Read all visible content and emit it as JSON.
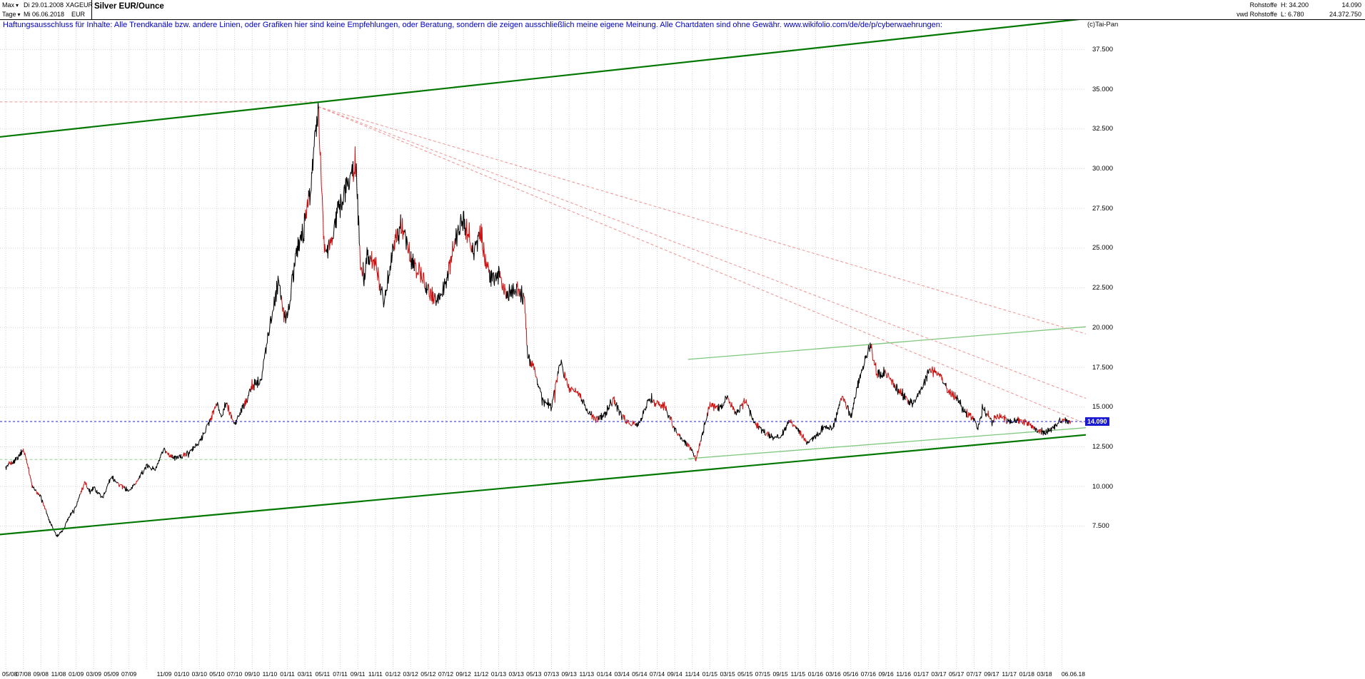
{
  "header": {
    "range_label": "Max",
    "period_label": "Tage",
    "start_date": "Di 29.01.2008",
    "end_date": "Mi 06.06.2018",
    "symbol": "XAGEUR",
    "currency": "EUR",
    "title": "Silver EUR/Ounce",
    "category": "Rohstoffe",
    "feed": "vwd Rohstoffe",
    "high": "H: 34.200",
    "low": "L: 6.780",
    "last_price": "14.090",
    "volume": "24.372.750",
    "copyright": "(c)Tai-Pan"
  },
  "icons": {
    "dropdown_arrow": "▾"
  },
  "disclaimer": "Haftungsausschluss für Inhalte: Alle Trendkanäle bzw. andere Linien, oder Grafiken hier sind keine Empfehlungen, oder Beratung, sondern die zeigen ausschließlich meine eigene Meinung. Alle Chartdaten sind ohne Gewähr.  www.wikifolio.com/de/de/p/cyberwaehrungen:",
  "chart_data": {
    "type": "candlestick",
    "title": "Silver EUR/Ounce",
    "instrument": "XAGEUR",
    "currency": "EUR",
    "start_date": "29.01.2008",
    "end_date": "06.06.2018",
    "last_price": 14.09,
    "high": 34.2,
    "low": 6.78,
    "grid": true,
    "legend": "none",
    "y_axis": {
      "position": "right",
      "ticks": [
        37.5,
        35,
        32.5,
        30,
        27.5,
        25,
        22.5,
        20,
        17.5,
        15,
        12.5,
        10,
        7.5
      ],
      "tick_labels": [
        "37.500",
        "35.000",
        "32.500",
        "30.000",
        "27.500",
        "25.000",
        "22.500",
        "20.000",
        "17.500",
        "15.000",
        "12.500",
        "10.000",
        "7.500"
      ]
    },
    "x_axis": {
      "unit": "months_from_2008-05",
      "ticks": [
        {
          "m": 0,
          "label": "05/08"
        },
        {
          "m": 2,
          "label": "07/08"
        },
        {
          "m": 4,
          "label": "09/08"
        },
        {
          "m": 6,
          "label": "11/08"
        },
        {
          "m": 8,
          "label": "01/09"
        },
        {
          "m": 10,
          "label": "03/09"
        },
        {
          "m": 12,
          "label": "05/09"
        },
        {
          "m": 14,
          "label": "07/09"
        },
        {
          "m": 18,
          "label": "11/09"
        },
        {
          "m": 20,
          "label": "01/10"
        },
        {
          "m": 22,
          "label": "03/10"
        },
        {
          "m": 24,
          "label": "05/10"
        },
        {
          "m": 26,
          "label": "07/10"
        },
        {
          "m": 28,
          "label": "09/10"
        },
        {
          "m": 30,
          "label": "11/10"
        },
        {
          "m": 32,
          "label": "01/11"
        },
        {
          "m": 34,
          "label": "03/11"
        },
        {
          "m": 36,
          "label": "05/11"
        },
        {
          "m": 38,
          "label": "07/11"
        },
        {
          "m": 40,
          "label": "09/11"
        },
        {
          "m": 42,
          "label": "11/11"
        },
        {
          "m": 44,
          "label": "01/12"
        },
        {
          "m": 46,
          "label": "03/12"
        },
        {
          "m": 48,
          "label": "05/12"
        },
        {
          "m": 50,
          "label": "07/12"
        },
        {
          "m": 52,
          "label": "09/12"
        },
        {
          "m": 54,
          "label": "11/12"
        },
        {
          "m": 56,
          "label": "01/13"
        },
        {
          "m": 58,
          "label": "03/13"
        },
        {
          "m": 60,
          "label": "05/13"
        },
        {
          "m": 62,
          "label": "07/13"
        },
        {
          "m": 64,
          "label": "09/13"
        },
        {
          "m": 66,
          "label": "11/13"
        },
        {
          "m": 68,
          "label": "01/14"
        },
        {
          "m": 70,
          "label": "03/14"
        },
        {
          "m": 72,
          "label": "05/14"
        },
        {
          "m": 74,
          "label": "07/14"
        },
        {
          "m": 76,
          "label": "09/14"
        },
        {
          "m": 78,
          "label": "11/14"
        },
        {
          "m": 80,
          "label": "01/15"
        },
        {
          "m": 82,
          "label": "03/15"
        },
        {
          "m": 84,
          "label": "05/15"
        },
        {
          "m": 86,
          "label": "07/15"
        },
        {
          "m": 88,
          "label": "09/15"
        },
        {
          "m": 90,
          "label": "11/15"
        },
        {
          "m": 92,
          "label": "01/16"
        },
        {
          "m": 94,
          "label": "03/16"
        },
        {
          "m": 96,
          "label": "05/16"
        },
        {
          "m": 98,
          "label": "07/16"
        },
        {
          "m": 100,
          "label": "09/16"
        },
        {
          "m": 102,
          "label": "11/16"
        },
        {
          "m": 104,
          "label": "01/17"
        },
        {
          "m": 106,
          "label": "03/17"
        },
        {
          "m": 108,
          "label": "05/17"
        },
        {
          "m": 110,
          "label": "07/17"
        },
        {
          "m": 112,
          "label": "09/17"
        },
        {
          "m": 114,
          "label": "11/17"
        },
        {
          "m": 116,
          "label": "01/18"
        },
        {
          "m": 118,
          "label": "03/18"
        },
        {
          "m": 121,
          "label": "06.06.18",
          "align": "right"
        }
      ]
    },
    "series_monthly": {
      "x_unit": "months_from_2008-05",
      "points": [
        [
          0,
          11.2
        ],
        [
          1,
          11.6
        ],
        [
          2,
          12.3
        ],
        [
          2.5,
          11.4
        ],
        [
          3,
          10.0
        ],
        [
          4,
          9.3
        ],
        [
          5,
          7.8
        ],
        [
          5.8,
          6.9
        ],
        [
          6.5,
          7.2
        ],
        [
          7,
          7.9
        ],
        [
          8,
          8.8
        ],
        [
          9,
          10.3
        ],
        [
          9.5,
          9.6
        ],
        [
          10,
          9.9
        ],
        [
          11,
          9.3
        ],
        [
          12,
          10.6
        ],
        [
          13,
          10.1
        ],
        [
          14,
          9.7
        ],
        [
          15,
          10.4
        ],
        [
          16,
          11.3
        ],
        [
          17,
          11.1
        ],
        [
          18,
          12.3
        ],
        [
          19,
          11.8
        ],
        [
          20,
          11.9
        ],
        [
          21,
          12.2
        ],
        [
          22,
          12.8
        ],
        [
          23,
          13.9
        ],
        [
          24,
          15.2
        ],
        [
          24.5,
          14.4
        ],
        [
          25,
          15.3
        ],
        [
          26,
          13.9
        ],
        [
          27,
          15.0
        ],
        [
          28,
          16.3
        ],
        [
          29,
          16.8
        ],
        [
          30,
          20.2
        ],
        [
          31,
          23.0
        ],
        [
          31.5,
          21.0
        ],
        [
          32,
          20.6
        ],
        [
          33,
          24.8
        ],
        [
          34,
          26.5
        ],
        [
          34.7,
          29.3
        ],
        [
          35.5,
          33.9
        ],
        [
          35.9,
          29.0
        ],
        [
          36.2,
          24.5
        ],
        [
          37,
          25.5
        ],
        [
          38,
          27.8
        ],
        [
          39,
          29.2
        ],
        [
          39.8,
          30.4
        ],
        [
          40.3,
          23.8
        ],
        [
          40.8,
          23.2
        ],
        [
          41,
          24.8
        ],
        [
          42,
          23.9
        ],
        [
          43,
          21.6
        ],
        [
          44,
          25.2
        ],
        [
          45,
          26.4
        ],
        [
          46,
          24.3
        ],
        [
          47,
          23.6
        ],
        [
          48,
          22.4
        ],
        [
          49,
          21.6
        ],
        [
          50,
          22.8
        ],
        [
          51,
          25.2
        ],
        [
          52,
          27.0
        ],
        [
          53,
          24.8
        ],
        [
          54,
          25.8
        ],
        [
          55,
          23.0
        ],
        [
          56,
          23.3
        ],
        [
          57,
          22.0
        ],
        [
          58,
          22.4
        ],
        [
          58.9,
          21.9
        ],
        [
          59.3,
          18.2
        ],
        [
          60,
          17.4
        ],
        [
          61,
          15.4
        ],
        [
          62,
          15.0
        ],
        [
          63,
          17.9
        ],
        [
          64,
          16.2
        ],
        [
          65,
          16.0
        ],
        [
          66,
          14.8
        ],
        [
          67,
          14.2
        ],
        [
          68,
          14.5
        ],
        [
          69,
          15.5
        ],
        [
          70,
          14.4
        ],
        [
          71,
          13.9
        ],
        [
          72,
          14.0
        ],
        [
          73,
          15.5
        ],
        [
          74,
          15.3
        ],
        [
          75,
          14.9
        ],
        [
          76,
          13.6
        ],
        [
          77,
          12.9
        ],
        [
          78,
          12.2
        ],
        [
          78.4,
          11.7
        ],
        [
          79,
          13.0
        ],
        [
          80,
          15.2
        ],
        [
          81,
          14.9
        ],
        [
          82,
          15.6
        ],
        [
          83,
          14.6
        ],
        [
          84,
          15.4
        ],
        [
          85,
          14.1
        ],
        [
          86,
          13.5
        ],
        [
          87,
          13.1
        ],
        [
          88,
          13.1
        ],
        [
          89,
          14.2
        ],
        [
          90,
          13.5
        ],
        [
          91,
          12.8
        ],
        [
          92,
          13.2
        ],
        [
          93,
          13.8
        ],
        [
          94,
          13.7
        ],
        [
          95,
          15.7
        ],
        [
          96,
          14.4
        ],
        [
          97,
          16.9
        ],
        [
          98,
          18.5
        ],
        [
          98.3,
          18.8
        ],
        [
          99,
          17.0
        ],
        [
          100,
          17.2
        ],
        [
          101,
          16.3
        ],
        [
          102,
          15.7
        ],
        [
          103,
          15.2
        ],
        [
          104,
          16.1
        ],
        [
          105,
          17.4
        ],
        [
          106,
          17.1
        ],
        [
          107,
          16.0
        ],
        [
          108,
          15.6
        ],
        [
          109,
          14.7
        ],
        [
          110,
          14.3
        ],
        [
          110.4,
          13.6
        ],
        [
          111,
          14.9
        ],
        [
          112,
          14.2
        ],
        [
          113,
          14.5
        ],
        [
          114,
          14.0
        ],
        [
          115,
          14.2
        ],
        [
          116,
          14.0
        ],
        [
          117,
          13.6
        ],
        [
          118,
          13.4
        ],
        [
          119,
          13.7
        ],
        [
          120,
          14.2
        ],
        [
          121,
          14.09
        ]
      ]
    },
    "overlays": {
      "last_price_line": {
        "value": 14.09,
        "label": "14.090",
        "color": "#2222dd",
        "style": "dashed"
      },
      "trend_lines": [
        {
          "name": "upper-channel-line",
          "m1": -0.7,
          "p1": 32.0,
          "m2": 122.7,
          "p2": 39.45,
          "color": "#007800",
          "width": 2.2,
          "dash": "",
          "layer": "over",
          "drawn": true
        },
        {
          "name": "lower-channel-line",
          "m1": -0.7,
          "p1": 6.98,
          "m2": 122.7,
          "p2": 13.25,
          "color": "#007800",
          "width": 2.2,
          "dash": "",
          "layer": "over",
          "drawn": true
        },
        {
          "name": "resistance-trendline",
          "m1": 77.5,
          "p1": 18.0,
          "m2": 122.7,
          "p2": 20.05,
          "color": "#7dc87d",
          "width": 1.3,
          "dash": "",
          "layer": "under",
          "drawn": true
        },
        {
          "name": "support-trendline",
          "m1": 77.5,
          "p1": 11.75,
          "m2": 122.7,
          "p2": 13.7,
          "color": "#7dc87d",
          "width": 1.3,
          "dash": "",
          "layer": "under",
          "drawn": true
        },
        {
          "name": "support-level-dashed",
          "m1": -0.7,
          "p1": 11.7,
          "m2": 78.4,
          "p2": 11.7,
          "color": "#8fd48f",
          "width": 1,
          "dash": "4 3",
          "layer": "under",
          "drawn": true
        },
        {
          "name": "high-level-line",
          "m1": -0.7,
          "p1": 34.2,
          "m2": 35.5,
          "p2": 34.2,
          "color": "#f09090",
          "width": 1,
          "dash": "4 3",
          "layer": "under",
          "drawn": false
        },
        {
          "name": "fan-line-1",
          "m1": 35.5,
          "p1": 33.9,
          "m2": 122.7,
          "p2": 19.6,
          "color": "#f09090",
          "width": 1,
          "dash": "4 3",
          "layer": "under",
          "drawn": true
        },
        {
          "name": "fan-line-2",
          "m1": 35.5,
          "p1": 33.9,
          "m2": 122.7,
          "p2": 15.55,
          "color": "#f09090",
          "width": 1,
          "dash": "4 3",
          "layer": "under",
          "drawn": true
        },
        {
          "name": "fan-line-3",
          "m1": 35.5,
          "p1": 33.9,
          "m2": 122.7,
          "p2": 13.95,
          "color": "#f09090",
          "width": 1,
          "dash": "4 3",
          "layer": "under",
          "drawn": true
        }
      ]
    },
    "colors": {
      "up": "#000000",
      "down": "#cc1111",
      "grid": "#d2d2d2",
      "channel": "#007800",
      "minor_trend": "#7dc87d",
      "fan": "#f09090",
      "last_price": "#2222dd",
      "price_tag_bg": "#1a1ad0"
    }
  }
}
